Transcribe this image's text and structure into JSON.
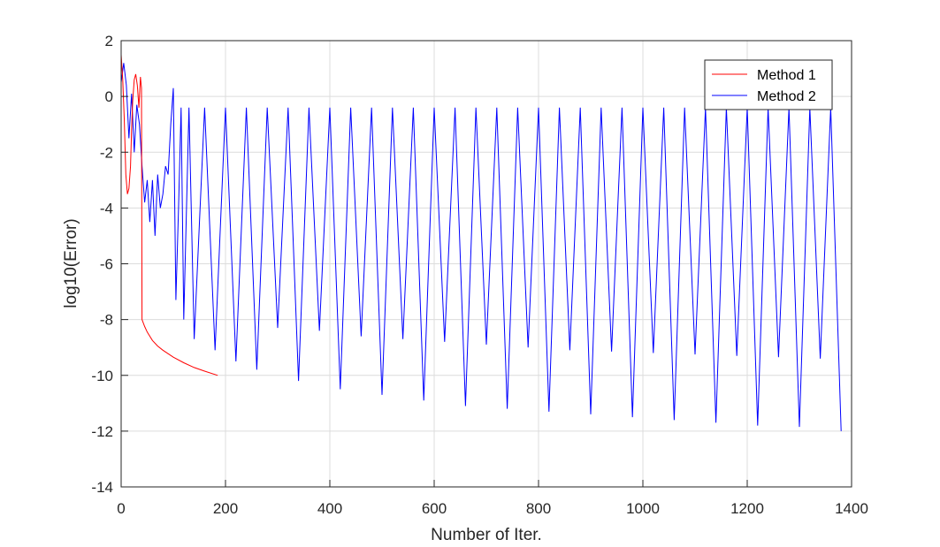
{
  "chart_data": {
    "type": "line",
    "title": "",
    "xlabel": "Number of Iter.",
    "ylabel": "log10(Error)",
    "xlim": [
      0,
      1400
    ],
    "ylim": [
      -14,
      2
    ],
    "xticks": [
      0,
      200,
      400,
      600,
      800,
      1000,
      1200,
      1400
    ],
    "yticks": [
      2,
      0,
      -2,
      -4,
      -6,
      -8,
      -10,
      -12,
      -14
    ],
    "grid": true,
    "legend_placement": "top-right",
    "series": [
      {
        "name": "Method 1",
        "color": "#ff0000",
        "x": [
          0,
          3,
          6,
          9,
          12,
          15,
          18,
          20,
          22,
          25,
          28,
          31,
          34,
          37,
          39,
          40,
          42,
          45,
          50,
          60,
          70,
          80,
          100,
          120,
          140,
          160,
          185
        ],
        "y": [
          1.5,
          0.6,
          -0.8,
          -2.8,
          -3.5,
          -3.3,
          -2.5,
          -1.2,
          -0.2,
          0.6,
          0.8,
          0.4,
          -0.4,
          0.7,
          0.3,
          -8.0,
          -8.1,
          -8.25,
          -8.45,
          -8.75,
          -8.95,
          -9.1,
          -9.35,
          -9.55,
          -9.72,
          -9.85,
          -10.0
        ]
      },
      {
        "name": "Method 2",
        "color": "#0000ff",
        "x": [
          0,
          5,
          10,
          15,
          20,
          25,
          30,
          35,
          40,
          45,
          50,
          55,
          60,
          65,
          70,
          75,
          80,
          85,
          90,
          95,
          100,
          105,
          110,
          115,
          120,
          130,
          140,
          160,
          180,
          200,
          220,
          240,
          260,
          280,
          300,
          320,
          340,
          360,
          380,
          400,
          420,
          440,
          460,
          480,
          500,
          520,
          540,
          560,
          580,
          600,
          620,
          640,
          660,
          680,
          700,
          720,
          740,
          760,
          780,
          800,
          820,
          840,
          860,
          880,
          900,
          920,
          940,
          960,
          980,
          1000,
          1020,
          1040,
          1060,
          1080,
          1100,
          1120,
          1140,
          1160,
          1180,
          1200,
          1220,
          1240,
          1260,
          1280,
          1300,
          1320,
          1340,
          1360,
          1380
        ],
        "y": [
          0.5,
          1.2,
          0.4,
          -1.5,
          0.1,
          -2.0,
          -0.3,
          -1.0,
          -2.5,
          -3.8,
          -3.0,
          -4.5,
          -3.0,
          -5.0,
          -2.8,
          -4.0,
          -3.5,
          -2.5,
          -2.8,
          -1.0,
          0.3,
          -7.3,
          -4.0,
          -0.4,
          -8.0,
          -0.4,
          -8.7,
          -0.4,
          -9.1,
          -0.4,
          -9.5,
          -0.4,
          -9.8,
          -0.4,
          -8.3,
          -0.4,
          -10.2,
          -0.4,
          -8.4,
          -0.4,
          -10.5,
          -0.4,
          -8.6,
          -0.4,
          -10.7,
          -0.4,
          -8.7,
          -0.4,
          -10.9,
          -0.4,
          -8.8,
          -0.4,
          -11.1,
          -0.4,
          -8.9,
          -0.4,
          -11.2,
          -0.4,
          -9.0,
          -0.4,
          -11.3,
          -0.4,
          -9.1,
          -0.4,
          -11.4,
          -0.4,
          -9.15,
          -0.4,
          -11.5,
          -0.4,
          -9.2,
          -0.4,
          -11.6,
          -0.4,
          -9.25,
          -0.4,
          -11.7,
          -0.4,
          -9.3,
          -0.4,
          -11.8,
          -0.4,
          -9.35,
          -0.4,
          -11.85,
          -0.4,
          -9.4,
          -0.4,
          -12.0
        ]
      }
    ]
  }
}
